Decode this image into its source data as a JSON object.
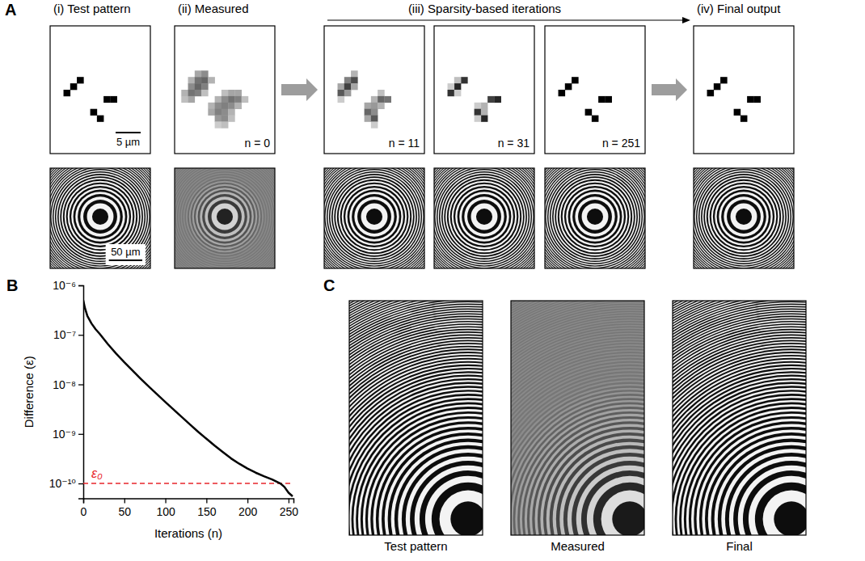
{
  "panel_a": {
    "letter": "A",
    "headings": [
      "(i) Test pattern",
      "(ii) Measured",
      "(iii) Sparsity-based iterations",
      "(iv) Final output"
    ],
    "pixel_rows": 20,
    "pixel_cols": 15,
    "images": [
      {
        "cells": [
          [
            10,
            2,
            1
          ],
          [
            9,
            3,
            1
          ],
          [
            8,
            4,
            1
          ],
          [
            11,
            8,
            1
          ],
          [
            11,
            9,
            1
          ],
          [
            13,
            6,
            1
          ],
          [
            14,
            7,
            1
          ]
        ]
      },
      {
        "caption": "n = 0",
        "cells": [
          [
            7,
            3,
            0.35
          ],
          [
            7,
            4,
            0.45
          ],
          [
            8,
            2,
            0.3
          ],
          [
            8,
            3,
            0.55
          ],
          [
            8,
            4,
            0.6
          ],
          [
            8,
            5,
            0.3
          ],
          [
            9,
            2,
            0.45
          ],
          [
            9,
            3,
            0.6
          ],
          [
            9,
            4,
            0.5
          ],
          [
            10,
            1,
            0.3
          ],
          [
            10,
            2,
            0.55
          ],
          [
            10,
            3,
            0.5
          ],
          [
            10,
            4,
            0.25
          ],
          [
            11,
            1,
            0.25
          ],
          [
            11,
            2,
            0.35
          ],
          [
            10,
            7,
            0.25
          ],
          [
            10,
            8,
            0.35
          ],
          [
            10,
            9,
            0.35
          ],
          [
            11,
            6,
            0.3
          ],
          [
            11,
            7,
            0.45
          ],
          [
            11,
            8,
            0.55
          ],
          [
            11,
            9,
            0.5
          ],
          [
            11,
            10,
            0.25
          ],
          [
            12,
            5,
            0.3
          ],
          [
            12,
            6,
            0.45
          ],
          [
            12,
            7,
            0.5
          ],
          [
            12,
            8,
            0.45
          ],
          [
            12,
            9,
            0.3
          ],
          [
            13,
            5,
            0.35
          ],
          [
            13,
            6,
            0.5
          ],
          [
            13,
            7,
            0.45
          ],
          [
            13,
            8,
            0.3
          ],
          [
            14,
            6,
            0.4
          ],
          [
            14,
            7,
            0.45
          ],
          [
            14,
            8,
            0.25
          ],
          [
            15,
            6,
            0.2
          ],
          [
            15,
            7,
            0.25
          ]
        ]
      },
      {
        "caption": "n = 11",
        "cells": [
          [
            7,
            4,
            0.3
          ],
          [
            8,
            3,
            0.5
          ],
          [
            8,
            4,
            0.7
          ],
          [
            9,
            2,
            0.35
          ],
          [
            9,
            3,
            0.75
          ],
          [
            9,
            4,
            0.35
          ],
          [
            10,
            2,
            0.65
          ],
          [
            10,
            3,
            0.4
          ],
          [
            11,
            2,
            0.2
          ],
          [
            10,
            8,
            0.25
          ],
          [
            11,
            7,
            0.3
          ],
          [
            11,
            8,
            0.6
          ],
          [
            11,
            9,
            0.55
          ],
          [
            12,
            6,
            0.35
          ],
          [
            12,
            7,
            0.4
          ],
          [
            12,
            8,
            0.3
          ],
          [
            13,
            6,
            0.6
          ],
          [
            13,
            7,
            0.45
          ],
          [
            14,
            6,
            0.35
          ],
          [
            14,
            7,
            0.65
          ],
          [
            15,
            7,
            0.2
          ]
        ]
      },
      {
        "caption": "n = 31",
        "cells": [
          [
            8,
            4,
            0.8
          ],
          [
            8,
            3,
            0.25
          ],
          [
            9,
            3,
            0.85
          ],
          [
            9,
            2,
            0.2
          ],
          [
            10,
            2,
            0.8
          ],
          [
            10,
            3,
            0.2
          ],
          [
            11,
            8,
            0.75
          ],
          [
            11,
            9,
            0.85
          ],
          [
            12,
            7,
            0.3
          ],
          [
            12,
            6,
            0.2
          ],
          [
            13,
            6,
            0.8
          ],
          [
            13,
            7,
            0.3
          ],
          [
            14,
            7,
            0.85
          ],
          [
            14,
            6,
            0.2
          ]
        ]
      },
      {
        "caption": "n = 251",
        "cells": [
          [
            10,
            2,
            1
          ],
          [
            9,
            3,
            1
          ],
          [
            8,
            4,
            1
          ],
          [
            11,
            8,
            1
          ],
          [
            11,
            9,
            1
          ],
          [
            13,
            6,
            1
          ],
          [
            14,
            7,
            1
          ]
        ]
      },
      {
        "cells": [
          [
            10,
            2,
            1
          ],
          [
            9,
            3,
            1
          ],
          [
            8,
            4,
            1
          ],
          [
            11,
            8,
            1
          ],
          [
            11,
            9,
            1
          ],
          [
            13,
            6,
            1
          ],
          [
            14,
            7,
            1
          ]
        ]
      }
    ],
    "pattern_scale_bar": {
      "label": "5 µm",
      "length": 5,
      "field_width": 20
    },
    "hologram_scale_bar": {
      "label": "50 µm",
      "length": 50,
      "field_width": 150
    }
  },
  "chart_data": {
    "type": "line",
    "letter": "B",
    "x_label": "Iterations (n)",
    "y_label": "Difference (ε)",
    "x": [
      0,
      2,
      5,
      10,
      15,
      20,
      30,
      40,
      50,
      60,
      70,
      80,
      90,
      100,
      110,
      120,
      130,
      140,
      150,
      160,
      170,
      180,
      190,
      200,
      210,
      220,
      230,
      240,
      245,
      250,
      255
    ],
    "values": [
      5e-07,
      3.5e-07,
      2.4e-07,
      1.7e-07,
      1.3e-07,
      1.05e-07,
      6.5e-08,
      4.2e-08,
      2.8e-08,
      1.9e-08,
      1.3e-08,
      9e-09,
      6.3e-09,
      4.4e-09,
      3.1e-09,
      2.2e-09,
      1.55e-09,
      1.1e-09,
      8e-10,
      5.8e-10,
      4.3e-10,
      3.2e-10,
      2.5e-10,
      2e-10,
      1.65e-10,
      1.4e-10,
      1.2e-10,
      1e-10,
      8.5e-11,
      6.5e-11,
      5.5e-11
    ],
    "color": "#000000",
    "xlim": [
      0,
      256
    ],
    "ylim": [
      5e-11,
      1e-06
    ],
    "log": "y",
    "xticks": [
      0,
      50,
      100,
      150,
      200,
      250
    ],
    "yticks": [
      {
        "value": 1e-10,
        "label": "10⁻¹⁰"
      },
      {
        "value": 1e-09,
        "label": "10⁻⁹"
      },
      {
        "value": 1e-08,
        "label": "10⁻⁸"
      },
      {
        "value": 1e-07,
        "label": "10⁻⁷"
      },
      {
        "value": 1e-06,
        "label": "10⁻⁶"
      }
    ],
    "annotations": [
      {
        "text": "ε₀",
        "y": 1e-10,
        "color": "#e8262b",
        "line_style": "dashed"
      }
    ]
  },
  "panel_c": {
    "letter": "C",
    "captions": [
      "Test pattern",
      "Measured",
      "Final"
    ]
  }
}
